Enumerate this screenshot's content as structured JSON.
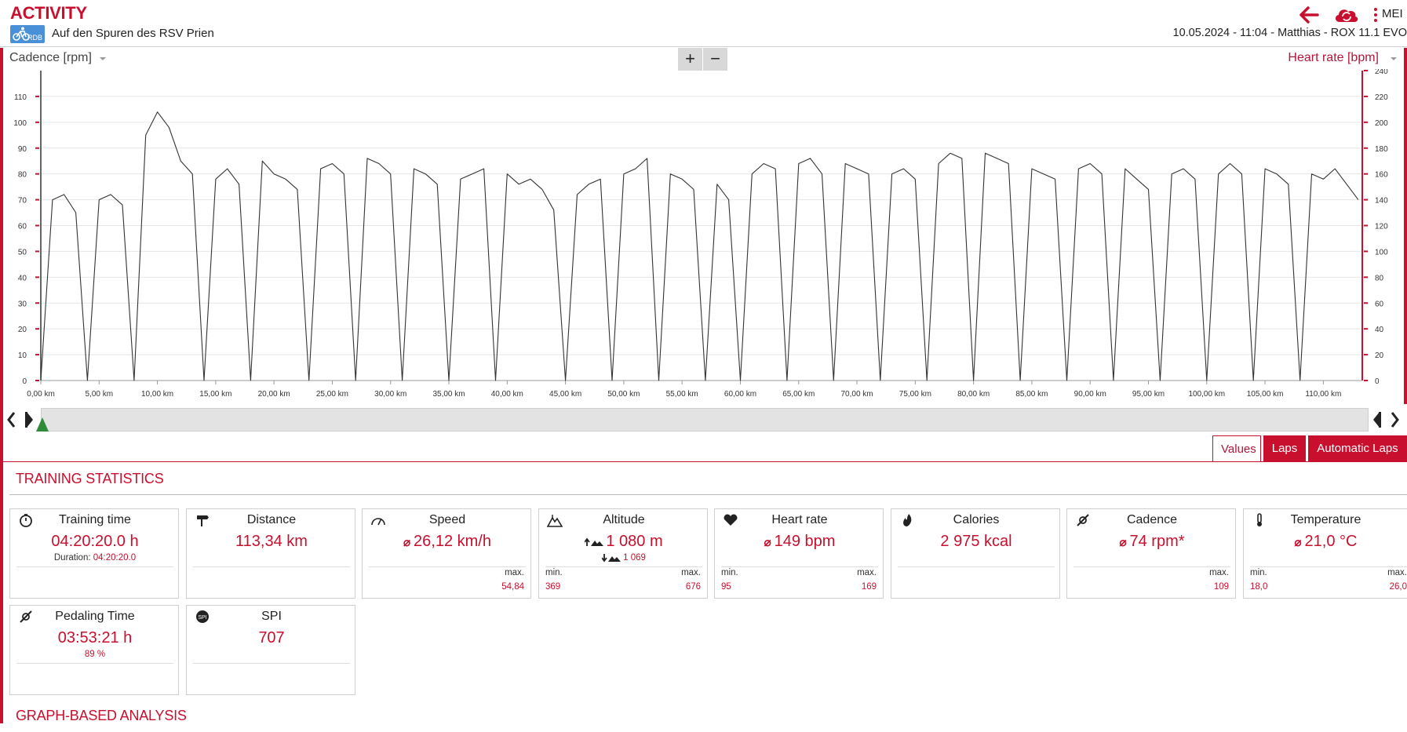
{
  "header": {
    "title": "ACTIVITY",
    "logo_text": "RDB",
    "activity_name": "Auf den Spuren des RSV Prien",
    "menu_label": "MEI",
    "meta": "10.05.2024  -  11:04  -  Matthias  -  ROX 11.1 EVO"
  },
  "chart": {
    "left_axis_label": "Cadence [rpm]",
    "right_axis_label": "Heart rate [bpm]",
    "zoom_in": "+",
    "zoom_out": "−",
    "left_ticks": [
      "0",
      "10",
      "20",
      "30",
      "40",
      "50",
      "60",
      "70",
      "80",
      "90",
      "100",
      "110"
    ],
    "right_ticks": [
      "0",
      "20",
      "40",
      "60",
      "80",
      "100",
      "120",
      "140",
      "160",
      "180",
      "200",
      "220",
      "240"
    ],
    "x_ticks": [
      "0,00 km",
      "5,00 km",
      "10,00 km",
      "15,00 km",
      "20,00 km",
      "25,00 km",
      "30,00 km",
      "35,00 km",
      "40,00 km",
      "45,00 km",
      "50,00 km",
      "55,00 km",
      "60,00 km",
      "65,00 km",
      "70,00 km",
      "75,00 km",
      "80,00 km",
      "85,00 km",
      "90,00 km",
      "95,00 km",
      "100,00 km",
      "105,00 km",
      "110,00 km"
    ],
    "colors": {
      "line": "#333333",
      "accent": "#c8102e"
    }
  },
  "chart_data": {
    "type": "line",
    "xlabel": "",
    "ylabel": "Cadence [rpm]",
    "y2label": "Heart rate [bpm]",
    "xlim": [
      0,
      113.34
    ],
    "ylim": [
      0,
      120
    ],
    "y2lim": [
      0,
      240
    ],
    "grid": true,
    "series": [
      {
        "name": "Cadence [rpm]",
        "x": [
          0,
          1,
          2,
          3,
          4,
          5,
          6,
          7,
          8,
          9,
          10,
          11,
          12,
          13,
          14,
          15,
          16,
          17,
          18,
          19,
          20,
          21,
          22,
          23,
          24,
          25,
          26,
          27,
          28,
          29,
          30,
          31,
          32,
          33,
          34,
          35,
          36,
          37,
          38,
          39,
          40,
          41,
          42,
          43,
          44,
          45,
          46,
          47,
          48,
          49,
          50,
          51,
          52,
          53,
          54,
          55,
          56,
          57,
          58,
          59,
          60,
          61,
          62,
          63,
          64,
          65,
          66,
          67,
          68,
          69,
          70,
          71,
          72,
          73,
          74,
          75,
          76,
          77,
          78,
          79,
          80,
          81,
          82,
          83,
          84,
          85,
          86,
          87,
          88,
          89,
          90,
          91,
          92,
          93,
          94,
          95,
          96,
          97,
          98,
          99,
          100,
          101,
          102,
          103,
          104,
          105,
          106,
          107,
          108,
          109,
          110,
          111,
          112,
          113
        ],
        "values": [
          0,
          70,
          72,
          65,
          0,
          70,
          72,
          68,
          0,
          95,
          104,
          98,
          85,
          80,
          0,
          78,
          82,
          76,
          0,
          85,
          80,
          78,
          74,
          0,
          82,
          84,
          80,
          0,
          86,
          84,
          80,
          0,
          82,
          80,
          76,
          0,
          78,
          80,
          82,
          0,
          80,
          76,
          78,
          74,
          66,
          0,
          72,
          76,
          78,
          0,
          80,
          82,
          86,
          0,
          80,
          78,
          74,
          0,
          76,
          70,
          0,
          80,
          84,
          82,
          0,
          84,
          86,
          80,
          0,
          84,
          82,
          80,
          0,
          80,
          82,
          78,
          0,
          84,
          88,
          86,
          0,
          88,
          86,
          84,
          0,
          82,
          80,
          78,
          0,
          82,
          84,
          80,
          0,
          82,
          78,
          74,
          0,
          80,
          82,
          78,
          0,
          80,
          84,
          80,
          0,
          82,
          80,
          76,
          0,
          80,
          78,
          82,
          76,
          70
        ]
      }
    ]
  },
  "tabs": {
    "values": "Values",
    "laps": "Laps",
    "auto_laps": "Automatic Laps"
  },
  "stats_title": "TRAINING STATISTICS",
  "analysis_title": "GRAPH-BASED ANALYSIS",
  "stats": {
    "training_time": {
      "title": "Training time",
      "value": "04:20:20.0 h",
      "sub_label": "Duration:",
      "sub_value": "04:20:20.0"
    },
    "distance": {
      "title": "Distance",
      "value": "113,34 km"
    },
    "speed": {
      "title": "Speed",
      "avg_symbol": "⌀",
      "value": "26,12 km/h",
      "max_label": "max.",
      "max_value": "54,84"
    },
    "altitude": {
      "title": "Altitude",
      "value": "1 080 m",
      "down_value": "1 069",
      "min_label": "min.",
      "min_value": "369",
      "max_label": "max.",
      "max_value": "676"
    },
    "heart_rate": {
      "title": "Heart rate",
      "avg_symbol": "⌀",
      "value": "149 bpm",
      "min_label": "min.",
      "min_value": "95",
      "max_label": "max.",
      "max_value": "169"
    },
    "calories": {
      "title": "Calories",
      "value": "2 975 kcal"
    },
    "cadence": {
      "title": "Cadence",
      "avg_symbol": "⌀",
      "value": "74 rpm*",
      "max_label": "max.",
      "max_value": "109"
    },
    "temperature": {
      "title": "Temperature",
      "avg_symbol": "⌀",
      "value": "21,0 °C",
      "min_label": "min.",
      "min_value": "18,0",
      "max_label": "max.",
      "max_value": "26,0"
    },
    "pedaling_time": {
      "title": "Pedaling Time",
      "value": "03:53:21 h",
      "sub_value": "89 %"
    },
    "spi": {
      "title": "SPI",
      "value": "707"
    }
  }
}
